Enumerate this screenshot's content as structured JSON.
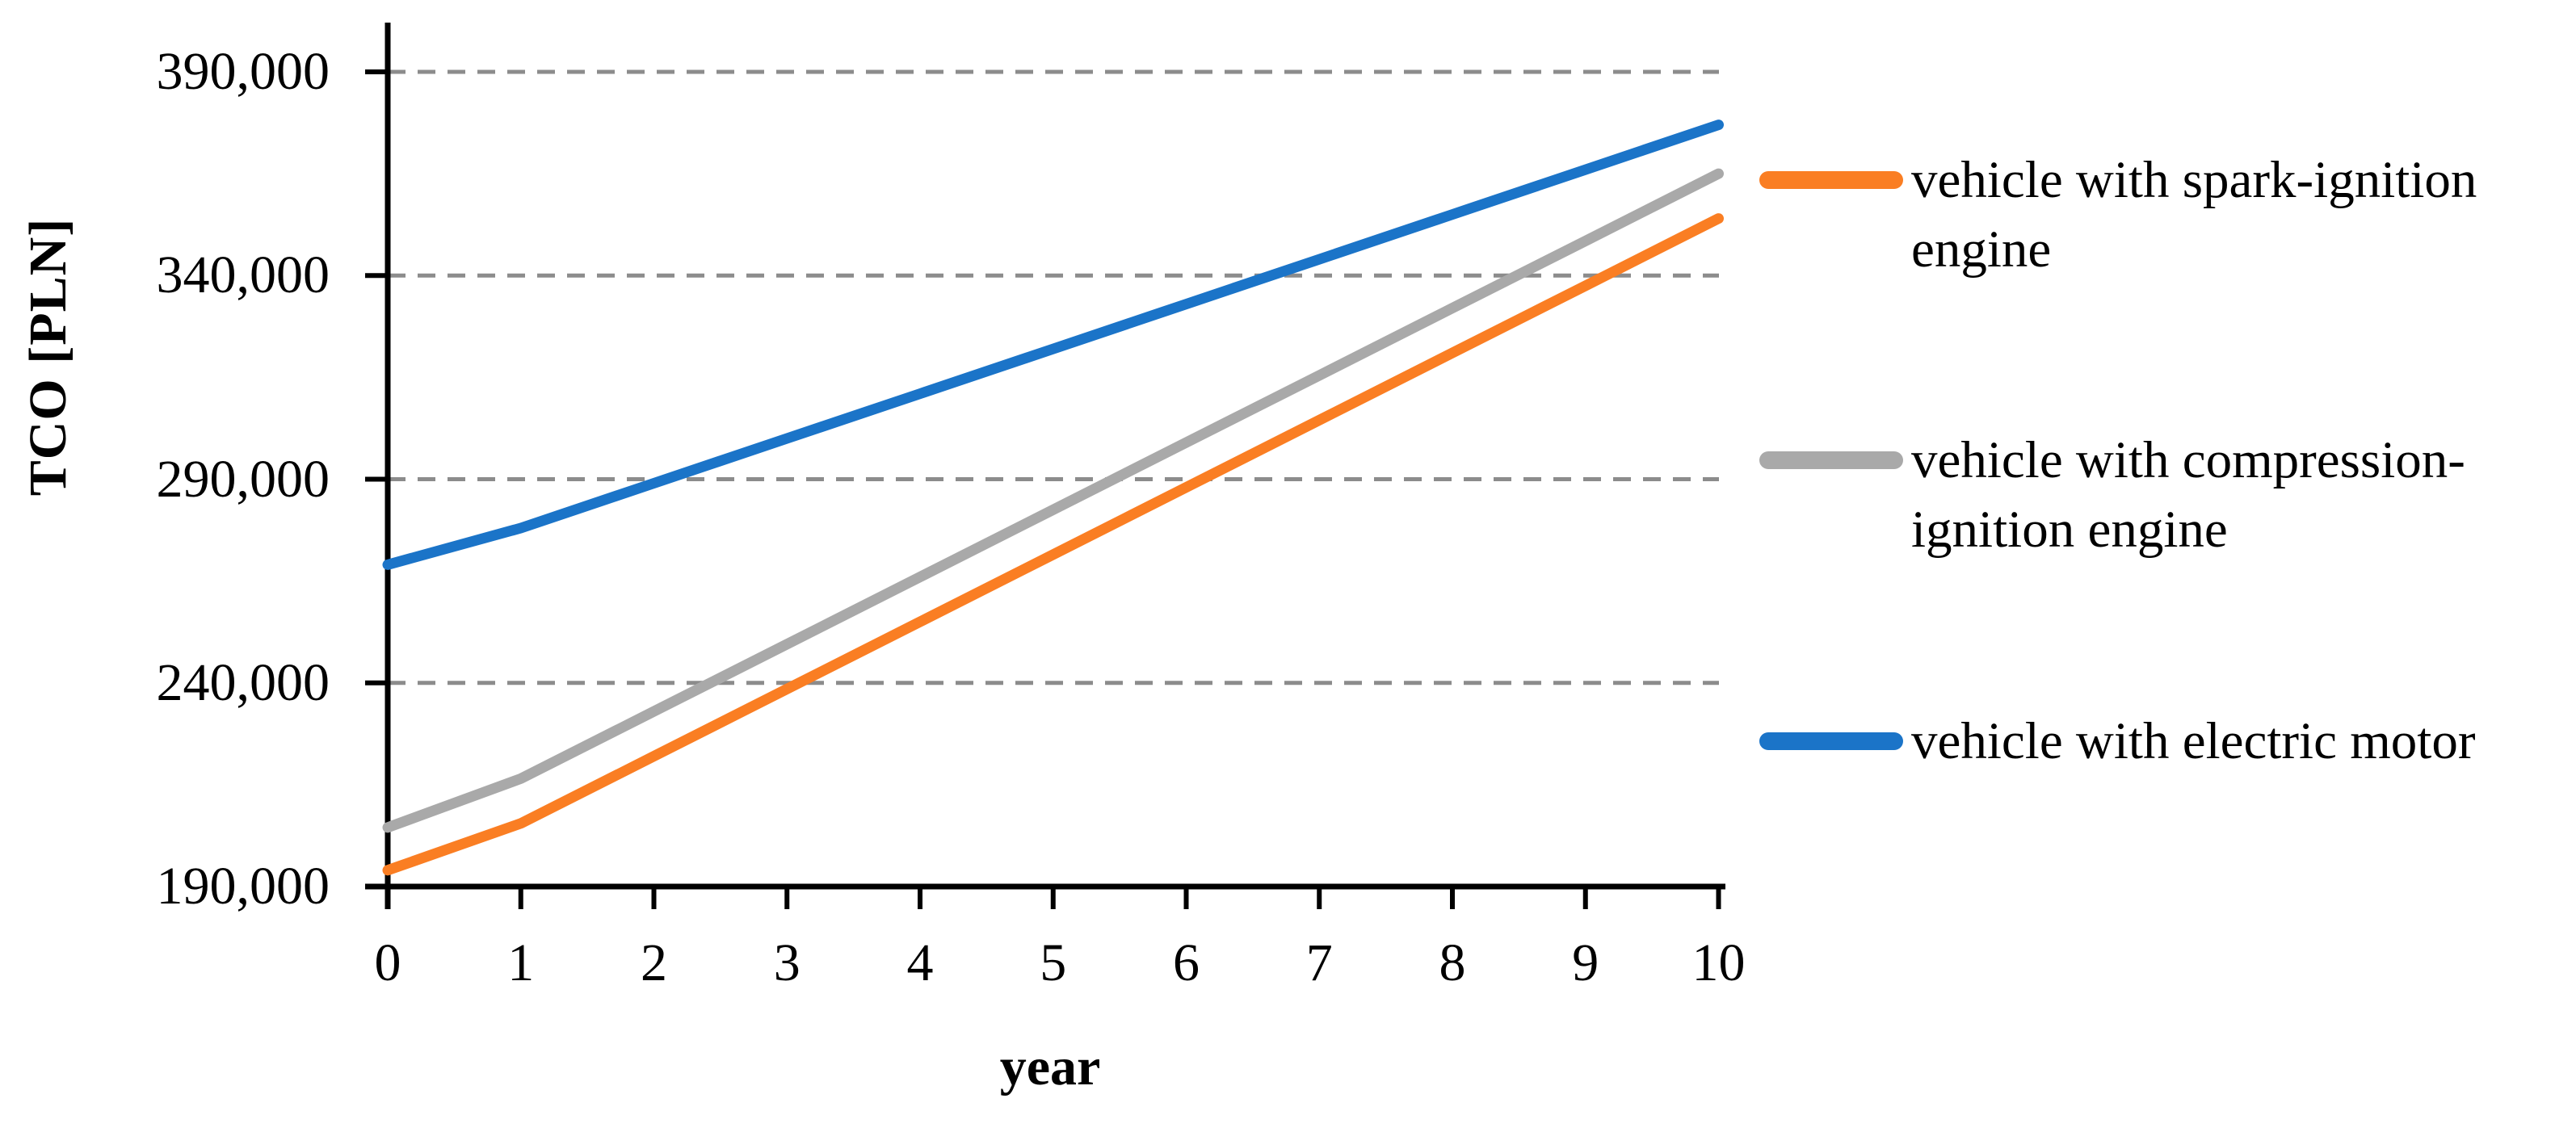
{
  "figure": {
    "background": "#ffffff",
    "axis_color": "#000000",
    "gridline_color": "#8C8C8C"
  },
  "chart_data": {
    "type": "line",
    "title": "",
    "xlabel": "year",
    "ylabel": "TCO [PLN]",
    "xlim": [
      0,
      10
    ],
    "ylim": [
      190000,
      390000
    ],
    "x": [
      0,
      1,
      2,
      3,
      4,
      5,
      6,
      7,
      8,
      9,
      10
    ],
    "x_tick_labels": [
      "0",
      "1",
      "2",
      "3",
      "4",
      "5",
      "6",
      "7",
      "8",
      "9",
      "10"
    ],
    "y_ticks": [
      190000,
      240000,
      290000,
      340000,
      390000
    ],
    "y_tick_labels": [
      "190,000",
      "240,000",
      "290,000",
      "340,000",
      "390,000"
    ],
    "grid": {
      "horizontal": true,
      "style": "dashed",
      "color": "#8C8C8C"
    },
    "legend_position": "right",
    "series": [
      {
        "name": "vehicle with spark-ignition engine",
        "color": "#FA7E23",
        "values": [
          194000,
          205500,
          222000,
          238500,
          255000,
          271500,
          288000,
          304500,
          321000,
          337500,
          354000
        ]
      },
      {
        "name": "vehicle with compression-ignition engine",
        "color": "#A9A9A9",
        "values": [
          204500,
          216500,
          233000,
          249500,
          266000,
          282500,
          299000,
          315500,
          332000,
          348500,
          365000
        ]
      },
      {
        "name": "vehicle with electric motor",
        "color": "#1B74C8",
        "values": [
          269000,
          278000,
          289000,
          300000,
          311000,
          322000,
          333000,
          344000,
          355000,
          366000,
          377000
        ]
      }
    ]
  }
}
